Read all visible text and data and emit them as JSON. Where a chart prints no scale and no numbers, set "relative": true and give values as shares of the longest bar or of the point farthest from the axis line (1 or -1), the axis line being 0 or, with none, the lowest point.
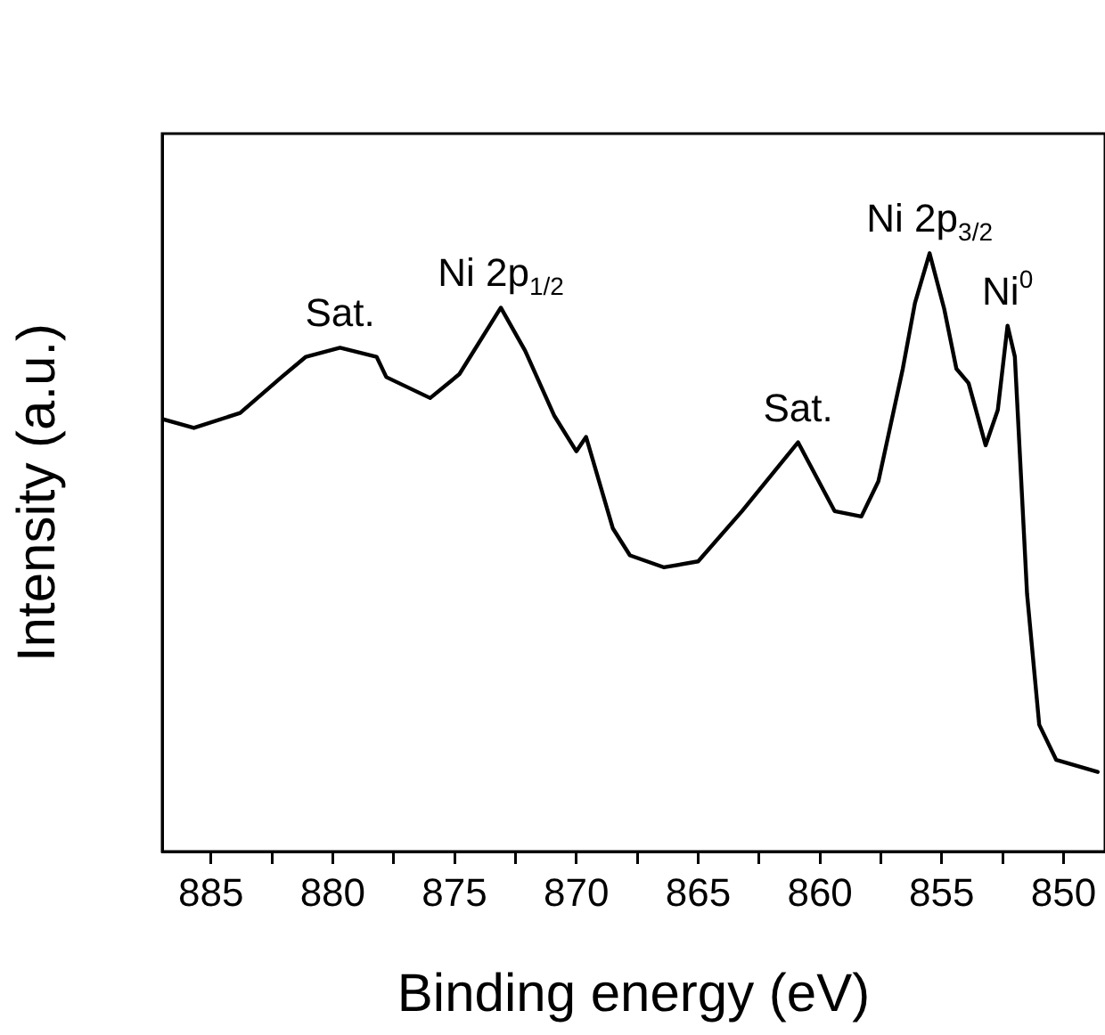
{
  "chart_data": {
    "type": "line",
    "xlabel": "Binding energy (eV)",
    "ylabel": "Intensity (a.u.)",
    "relative": true,
    "xlim": [
      887,
      848.3
    ],
    "xticks": [
      885,
      {
        "value": 882.5,
        "label": null
      },
      880,
      {
        "value": 877.5,
        "label": null
      },
      875,
      {
        "value": 872.5,
        "label": null
      },
      870,
      {
        "value": 867.5,
        "label": null
      },
      865,
      {
        "value": 862.5,
        "label": null
      },
      860,
      {
        "value": 857.5,
        "label": null
      },
      855,
      {
        "value": 852.5,
        "label": null
      },
      850
    ],
    "x": [
      887.0,
      885.7,
      883.8,
      882.1,
      881.1,
      879.7,
      878.2,
      877.8,
      876.0,
      874.8,
      873.1,
      872.1,
      870.9,
      870.0,
      869.6,
      868.5,
      867.8,
      866.4,
      865.0,
      863.2,
      860.9,
      859.4,
      858.3,
      857.6,
      856.6,
      856.1,
      855.5,
      854.9,
      854.4,
      853.9,
      853.2,
      852.7,
      852.3,
      852.0,
      851.5,
      851.0,
      850.3,
      848.6
    ],
    "series": [
      {
        "color": "#000000",
        "values": [
          0.723,
          0.708,
          0.733,
          0.793,
          0.827,
          0.842,
          0.827,
          0.793,
          0.758,
          0.798,
          0.909,
          0.837,
          0.728,
          0.669,
          0.693,
          0.54,
          0.495,
          0.475,
          0.485,
          0.569,
          0.684,
          0.569,
          0.56,
          0.619,
          0.807,
          0.917,
          1,
          0.907,
          0.807,
          0.783,
          0.679,
          0.738,
          0.879,
          0.827,
          0.431,
          0.212,
          0.153,
          0.133
        ]
      }
    ],
    "annotations": [
      {
        "text": "Sat.",
        "x": 879.7,
        "y": 0.842
      },
      {
        "text": "Ni 2p$_{1/2}$",
        "x": 873.1,
        "y": 0.909
      },
      {
        "text": "Sat.",
        "x": 860.9,
        "y": 0.684
      },
      {
        "text": "Ni 2p$_{3/2}$",
        "x": 855.5,
        "y": 1
      },
      {
        "text": "Ni$^{0}$",
        "x": 852.3,
        "y": 0.879
      }
    ],
    "grid": false,
    "legend": false,
    "marker": "none",
    "line_style": "solid"
  }
}
